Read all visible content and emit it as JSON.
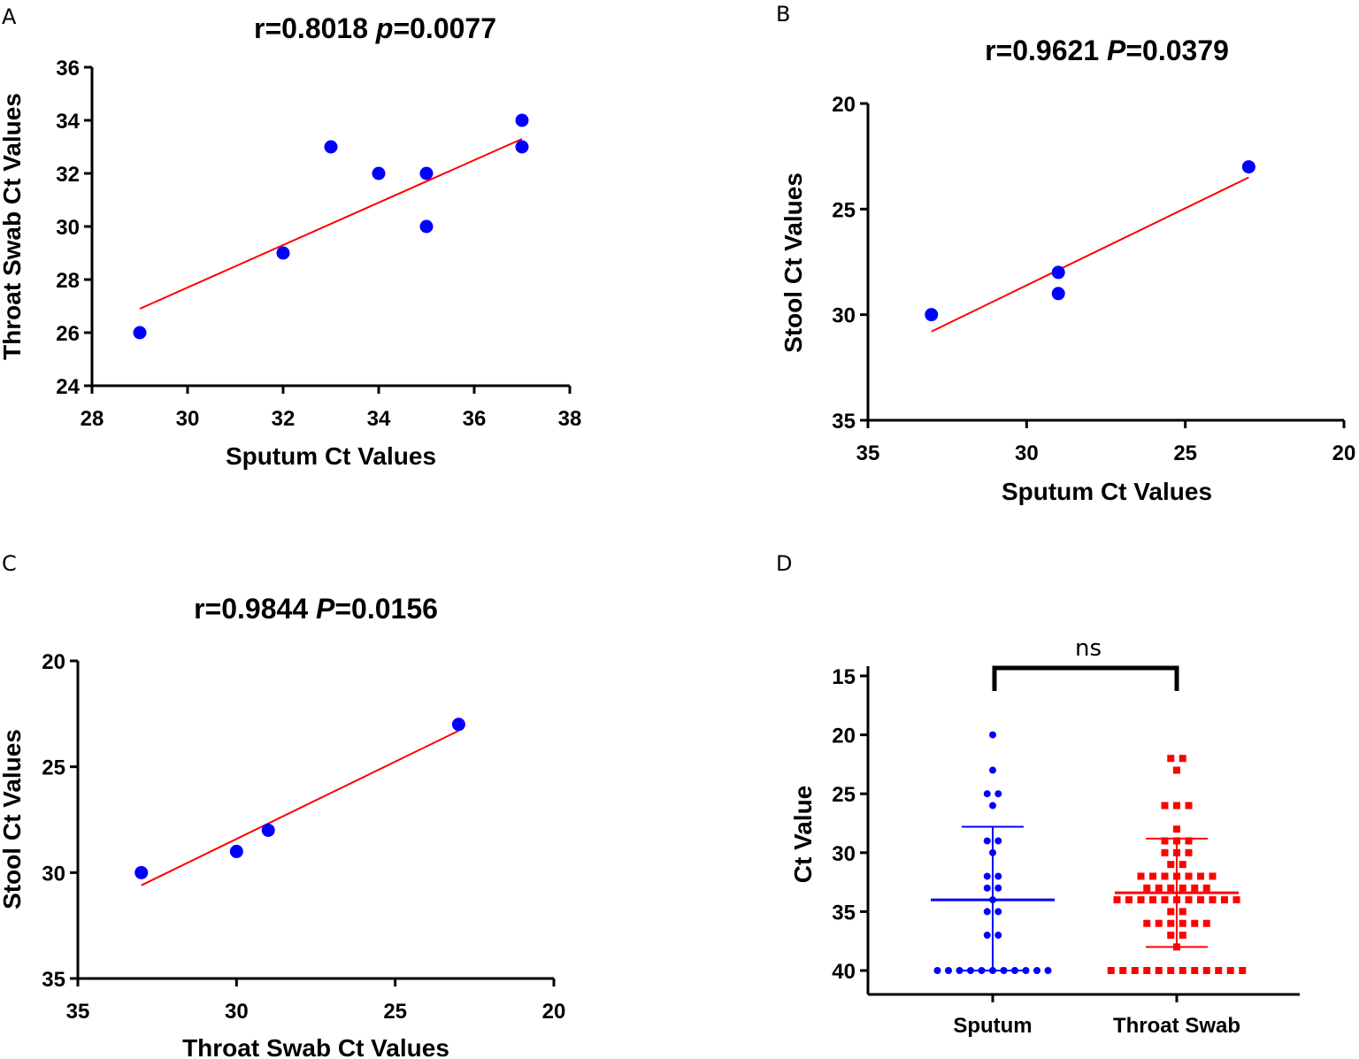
{
  "chart_data": [
    {
      "id": "A",
      "type": "scatter",
      "panel_label": "A",
      "title_r": "r=0.8018 ",
      "title_p_italic": "p",
      "title_p_value": "=0.0077",
      "xlabel": "Sputum Ct Values",
      "ylabel": "Throat Swab Ct Values",
      "xlim": [
        28,
        38
      ],
      "ylim": [
        24,
        36
      ],
      "x_ticks": [
        28,
        30,
        32,
        34,
        36,
        38
      ],
      "y_ticks": [
        24,
        26,
        28,
        30,
        32,
        34,
        36
      ],
      "x_reversed": false,
      "y_reversed": false,
      "points": [
        {
          "x": 29,
          "y": 26
        },
        {
          "x": 32,
          "y": 29
        },
        {
          "x": 33,
          "y": 33
        },
        {
          "x": 34,
          "y": 32
        },
        {
          "x": 35,
          "y": 32
        },
        {
          "x": 35,
          "y": 30
        },
        {
          "x": 37,
          "y": 34
        },
        {
          "x": 37,
          "y": 33
        }
      ],
      "fit_line": {
        "x": [
          29,
          37
        ],
        "y": [
          26.9,
          33.3
        ]
      },
      "point_color": "#0000ff",
      "line_color": "#ff0000"
    },
    {
      "id": "B",
      "type": "scatter",
      "panel_label": "B",
      "title_r": "r=0.9621 ",
      "title_p_italic": "P",
      "title_p_value": "=0.0379",
      "xlabel": "Sputum Ct Values",
      "ylabel": "Stool Ct Values",
      "xlim": [
        35,
        20
      ],
      "ylim": [
        20,
        35
      ],
      "x_ticks": [
        35,
        30,
        25,
        20
      ],
      "y_ticks": [
        20,
        25,
        30,
        35
      ],
      "x_reversed": true,
      "y_reversed": true,
      "points": [
        {
          "x": 33,
          "y": 30
        },
        {
          "x": 29,
          "y": 28
        },
        {
          "x": 29,
          "y": 29
        },
        {
          "x": 23,
          "y": 23
        }
      ],
      "fit_line": {
        "x": [
          33,
          23
        ],
        "y": [
          30.8,
          23.5
        ]
      },
      "point_color": "#0000ff",
      "line_color": "#ff0000"
    },
    {
      "id": "C",
      "type": "scatter",
      "panel_label": "C",
      "title_r": "r=0.9844  ",
      "title_p_italic": "P",
      "title_p_value": "=0.0156",
      "xlabel": "Throat Swab Ct Values",
      "ylabel": "Stool Ct Values",
      "xlim": [
        35,
        20
      ],
      "ylim": [
        20,
        35
      ],
      "x_ticks": [
        35,
        30,
        25,
        20
      ],
      "y_ticks": [
        20,
        25,
        30,
        35
      ],
      "x_reversed": true,
      "y_reversed": true,
      "points": [
        {
          "x": 33,
          "y": 30
        },
        {
          "x": 30,
          "y": 29
        },
        {
          "x": 29,
          "y": 28
        },
        {
          "x": 23,
          "y": 23
        }
      ],
      "fit_line": {
        "x": [
          33,
          23
        ],
        "y": [
          30.6,
          23.3
        ]
      },
      "point_color": "#0000ff",
      "line_color": "#ff0000"
    },
    {
      "id": "D",
      "type": "scatter",
      "panel_label": "D",
      "ylabel": "Ct  Value",
      "ylim": [
        15,
        42
      ],
      "y_ticks": [
        15,
        20,
        25,
        30,
        35,
        40
      ],
      "y_reversed": true,
      "categories": [
        "Sputum",
        "Throat Swab"
      ],
      "significance": "ns",
      "series": [
        {
          "name": "Sputum",
          "color": "#0000ff",
          "marker": "circle",
          "mean": 34,
          "sd_low": 27.8,
          "sd_high": 40,
          "values": [
            20,
            23,
            25,
            25,
            26,
            29,
            29,
            30,
            32,
            32,
            33,
            33,
            34,
            35,
            35,
            37,
            37,
            40,
            40,
            40,
            40,
            40,
            40,
            40,
            40,
            40,
            40,
            40
          ]
        },
        {
          "name": "Throat Swab",
          "color": "#ff0000",
          "marker": "square",
          "mean": 33.4,
          "sd_low": 28.8,
          "sd_high": 38,
          "values": [
            22,
            22,
            23,
            26,
            26,
            26,
            28,
            29,
            29,
            29,
            30,
            30,
            30,
            31,
            31,
            32,
            32,
            32,
            32,
            32,
            32,
            32,
            33,
            33,
            33,
            33,
            33,
            33,
            34,
            34,
            34,
            34,
            34,
            34,
            34,
            34,
            34,
            34,
            34,
            35,
            35,
            36,
            36,
            36,
            36,
            36,
            36,
            37,
            37,
            38,
            40,
            40,
            40,
            40,
            40,
            40,
            40,
            40,
            40,
            40,
            40,
            40
          ]
        }
      ]
    }
  ]
}
